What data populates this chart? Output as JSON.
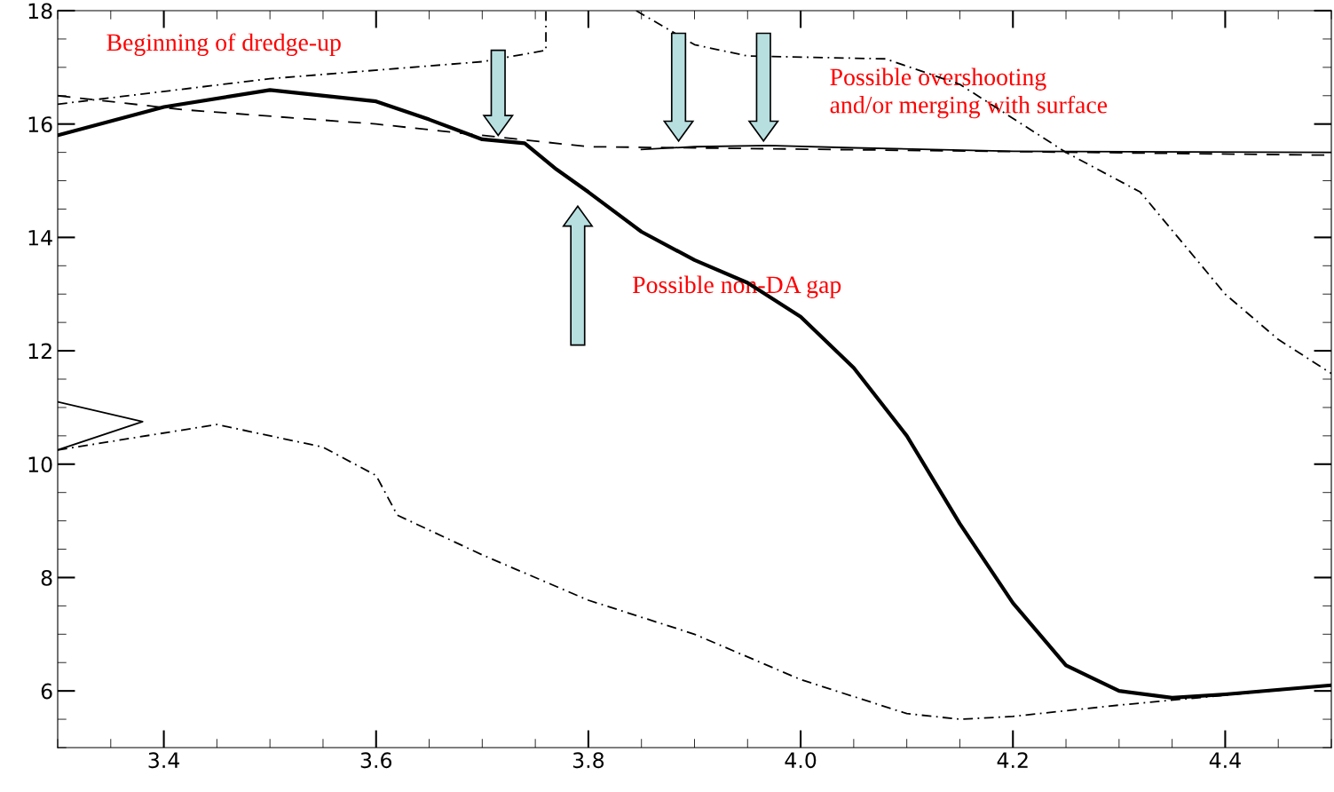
{
  "chart_data": {
    "type": "line",
    "xlim": [
      3.3,
      4.5
    ],
    "ylim": [
      5,
      18
    ],
    "xticks": [
      3.4,
      3.6,
      3.8,
      {
        "value": 4.0,
        "label": "4.0"
      },
      4.2,
      4.4
    ],
    "yticks": [
      6,
      8,
      10,
      12,
      14,
      16,
      18
    ],
    "grid": false,
    "legend": false,
    "series": [
      {
        "color": "#000000",
        "line_style": "solid",
        "x": [
          3.3,
          3.4,
          3.5,
          3.6,
          3.65,
          3.7,
          3.74,
          3.77,
          3.8,
          3.85,
          3.9,
          3.95,
          4.0,
          4.05,
          4.1,
          4.15,
          4.2,
          4.25,
          4.3,
          4.35,
          4.4,
          4.5
        ],
        "values": [
          15.8,
          16.3,
          16.6,
          16.4,
          16.08,
          15.73,
          15.66,
          15.2,
          14.8,
          14.1,
          13.6,
          13.2,
          12.6,
          11.7,
          10.5,
          8.95,
          7.55,
          6.45,
          6.0,
          5.88,
          5.94,
          6.1
        ]
      },
      {
        "color": "#000000",
        "line_style": "solid",
        "x": [
          3.85,
          3.9,
          3.97,
          4.05,
          4.2,
          4.5
        ],
        "values": [
          15.55,
          15.6,
          15.62,
          15.58,
          15.52,
          15.5
        ]
      },
      {
        "color": "#000000",
        "line_style": "solid",
        "x": [
          3.3,
          3.38,
          3.3
        ],
        "values": [
          11.1,
          10.75,
          10.25
        ]
      },
      {
        "color": "#000000",
        "line_style": "dashdot",
        "x": [
          3.3,
          3.45,
          3.55,
          3.6,
          3.62,
          3.7,
          3.8,
          3.9,
          4.0,
          4.1,
          4.15,
          4.2,
          4.3,
          4.5
        ],
        "values": [
          10.25,
          10.7,
          10.3,
          9.8,
          9.1,
          8.4,
          7.6,
          7.0,
          6.2,
          5.6,
          5.5,
          5.55,
          5.75,
          6.1
        ]
      },
      {
        "color": "#000000",
        "line_style": "dashed",
        "x": [
          3.3,
          3.42,
          3.6,
          3.8,
          4.5
        ],
        "values": [
          16.5,
          16.25,
          16.0,
          15.6,
          15.45
        ]
      },
      {
        "color": "#000000",
        "line_style": "dashdot",
        "x": [
          3.3,
          3.5,
          3.7,
          3.76,
          3.76
        ],
        "values": [
          16.35,
          16.8,
          17.1,
          17.3,
          18
        ]
      },
      {
        "color": "#000000",
        "line_style": "dashdot",
        "x": [
          3.845,
          3.9,
          3.95,
          4.08,
          4.15,
          4.25,
          4.32,
          4.4,
          4.45,
          4.5
        ],
        "values": [
          18,
          17.4,
          17.2,
          17.15,
          16.7,
          15.5,
          14.8,
          13.0,
          12.2,
          11.6
        ]
      }
    ],
    "annotations": [
      "Beginning of dredge-up",
      "Possible overshooting\nand/or merging with surface",
      "Possible non-DA gap"
    ]
  }
}
